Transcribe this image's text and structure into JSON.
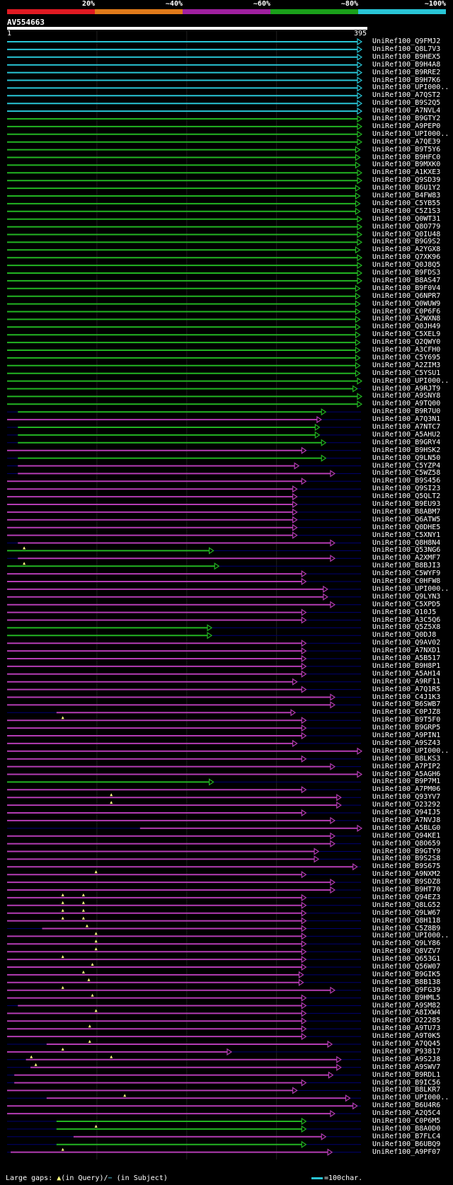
{
  "scale": {
    "labels": [
      "20%",
      "~40%",
      "~60%",
      "~80%",
      "~100%"
    ],
    "colors": [
      "#e01a22",
      "#e07a1a",
      "#a020a0",
      "#1aa01a",
      "#29c5d6"
    ]
  },
  "query": {
    "name": "AV554663",
    "start": "1",
    "end": "395"
  },
  "legend": {
    "gaps_label": "Large gaps:",
    "query_gap": "(in Query)",
    "subject_gap": "(in Subject)",
    "scale_note": "=100char."
  },
  "colors": {
    "cyan": "#29c5d6",
    "green": "#22b422",
    "magenta": "#b43cb4",
    "row_background": "#000070",
    "gap_marker": "#ffff80",
    "guide": "#1e1e1e"
  },
  "hits": [
    {
      "name": "UniRef100_Q9FMJ2",
      "c": "cyan",
      "s": 1,
      "e": 395
    },
    {
      "name": "UniRef100_Q8L7V3",
      "c": "cyan",
      "s": 1,
      "e": 395
    },
    {
      "name": "UniRef100_B9HEX5",
      "c": "cyan",
      "s": 1,
      "e": 395
    },
    {
      "name": "UniRef100_B9H4A8",
      "c": "cyan",
      "s": 1,
      "e": 395
    },
    {
      "name": "UniRef100_B9RRE2",
      "c": "cyan",
      "s": 1,
      "e": 395
    },
    {
      "name": "UniRef100_B9H7K6",
      "c": "cyan",
      "s": 1,
      "e": 395
    },
    {
      "name": "UniRef100_UPI000..",
      "c": "cyan",
      "s": 1,
      "e": 395
    },
    {
      "name": "UniRef100_A7QST2",
      "c": "cyan",
      "s": 1,
      "e": 395
    },
    {
      "name": "UniRef100_B9S2Q5",
      "c": "cyan",
      "s": 1,
      "e": 395
    },
    {
      "name": "UniRef100_A7NVL4",
      "c": "cyan",
      "s": 1,
      "e": 395
    },
    {
      "name": "UniRef100_B9GTY2",
      "c": "green",
      "s": 1,
      "e": 395
    },
    {
      "name": "UniRef100_A9PEP0",
      "c": "green",
      "s": 1,
      "e": 395
    },
    {
      "name": "UniRef100_UPI000..",
      "c": "green",
      "s": 1,
      "e": 395
    },
    {
      "name": "UniRef100_A7QE39",
      "c": "green",
      "s": 1,
      "e": 395
    },
    {
      "name": "UniRef100_B9T5Y6",
      "c": "green",
      "s": 1,
      "e": 393
    },
    {
      "name": "UniRef100_B9HFC0",
      "c": "green",
      "s": 1,
      "e": 393
    },
    {
      "name": "UniRef100_B9MXK0",
      "c": "green",
      "s": 1,
      "e": 393
    },
    {
      "name": "UniRef100_A1KXE3",
      "c": "green",
      "s": 1,
      "e": 395
    },
    {
      "name": "UniRef100_Q9SD39",
      "c": "green",
      "s": 1,
      "e": 395
    },
    {
      "name": "UniRef100_B6U1Y2",
      "c": "green",
      "s": 1,
      "e": 393
    },
    {
      "name": "UniRef100_B4FW83",
      "c": "green",
      "s": 1,
      "e": 393
    },
    {
      "name": "UniRef100_C5YB55",
      "c": "green",
      "s": 1,
      "e": 393
    },
    {
      "name": "UniRef100_C5Z1S3",
      "c": "green",
      "s": 1,
      "e": 393
    },
    {
      "name": "UniRef100_Q0WT31",
      "c": "green",
      "s": 1,
      "e": 395
    },
    {
      "name": "UniRef100_Q8O779",
      "c": "green",
      "s": 1,
      "e": 395
    },
    {
      "name": "UniRef100_Q0IU48",
      "c": "green",
      "s": 1,
      "e": 395
    },
    {
      "name": "UniRef100_B9G9S2",
      "c": "green",
      "s": 1,
      "e": 395
    },
    {
      "name": "UniRef100_A2YGX8",
      "c": "green",
      "s": 1,
      "e": 393
    },
    {
      "name": "UniRef100_Q7XK96",
      "c": "green",
      "s": 1,
      "e": 395
    },
    {
      "name": "UniRef100_Q0J8Q5",
      "c": "green",
      "s": 1,
      "e": 395
    },
    {
      "name": "UniRef100_B9FDS3",
      "c": "green",
      "s": 1,
      "e": 395
    },
    {
      "name": "UniRef100_B8AS47",
      "c": "green",
      "s": 1,
      "e": 395
    },
    {
      "name": "UniRef100_B9F0V4",
      "c": "green",
      "s": 1,
      "e": 393
    },
    {
      "name": "UniRef100_Q6NPR7",
      "c": "green",
      "s": 1,
      "e": 393
    },
    {
      "name": "UniRef100_Q0WUW9",
      "c": "green",
      "s": 1,
      "e": 393
    },
    {
      "name": "UniRef100_C0P6F6",
      "c": "green",
      "s": 1,
      "e": 393
    },
    {
      "name": "UniRef100_A2WXN8",
      "c": "green",
      "s": 1,
      "e": 393
    },
    {
      "name": "UniRef100_Q0JH49",
      "c": "green",
      "s": 1,
      "e": 393
    },
    {
      "name": "UniRef100_C5XEL9",
      "c": "green",
      "s": 1,
      "e": 393
    },
    {
      "name": "UniRef100_Q2QWY0",
      "c": "green",
      "s": 1,
      "e": 393
    },
    {
      "name": "UniRef100_A3CFH0",
      "c": "green",
      "s": 1,
      "e": 393
    },
    {
      "name": "UniRef100_C5Y695",
      "c": "green",
      "s": 1,
      "e": 393
    },
    {
      "name": "UniRef100_A2ZIM3",
      "c": "green",
      "s": 1,
      "e": 393
    },
    {
      "name": "UniRef100_C5YSU1",
      "c": "green",
      "s": 1,
      "e": 393
    },
    {
      "name": "UniRef100_UPI000..",
      "c": "green",
      "s": 1,
      "e": 395
    },
    {
      "name": "UniRef100_A9RJT9",
      "c": "green",
      "s": 1,
      "e": 390
    },
    {
      "name": "UniRef100_A9SNY8",
      "c": "green",
      "s": 1,
      "e": 395
    },
    {
      "name": "UniRef100_A9TQ00",
      "c": "green",
      "s": 1,
      "e": 395
    },
    {
      "name": "UniRef100_B9R7U0",
      "c": "green",
      "s": 13,
      "e": 355
    },
    {
      "name": "UniRef100_A7Q3N1",
      "c": "magenta",
      "s": 1,
      "e": 350
    },
    {
      "name": "UniRef100_A7NTC7",
      "c": "green",
      "s": 13,
      "e": 348
    },
    {
      "name": "UniRef100_A5AHU2",
      "c": "green",
      "s": 13,
      "e": 348
    },
    {
      "name": "UniRef100_B9GRY4",
      "c": "green",
      "s": 13,
      "e": 355
    },
    {
      "name": "UniRef100_B9HSK2",
      "c": "magenta",
      "s": 1,
      "e": 333
    },
    {
      "name": "UniRef100_Q9LN50",
      "c": "green",
      "s": 13,
      "e": 355
    },
    {
      "name": "UniRef100_C5YZP4",
      "c": "magenta",
      "s": 13,
      "e": 325
    },
    {
      "name": "UniRef100_C5WZ58",
      "c": "magenta",
      "s": 13,
      "e": 365
    },
    {
      "name": "UniRef100_B9S456",
      "c": "magenta",
      "s": 1,
      "e": 333
    },
    {
      "name": "UniRef100_Q9SI23",
      "c": "magenta",
      "s": 1,
      "e": 323
    },
    {
      "name": "UniRef100_Q5QLT2",
      "c": "magenta",
      "s": 1,
      "e": 323
    },
    {
      "name": "UniRef100_B9EU93",
      "c": "magenta",
      "s": 1,
      "e": 323
    },
    {
      "name": "UniRef100_B8ABM7",
      "c": "magenta",
      "s": 1,
      "e": 323
    },
    {
      "name": "UniRef100_Q6ATW5",
      "c": "magenta",
      "s": 1,
      "e": 323
    },
    {
      "name": "UniRef100_Q0DHE5",
      "c": "magenta",
      "s": 1,
      "e": 323
    },
    {
      "name": "UniRef100_C5XNY1",
      "c": "magenta",
      "s": 1,
      "e": 323
    },
    {
      "name": "UniRef100_Q8H8N4",
      "c": "magenta",
      "s": 13,
      "e": 365
    },
    {
      "name": "UniRef100_Q53NG6",
      "c": "green",
      "s": 1,
      "e": 230,
      "g": [
        {
          "p": 20,
          "t": "q"
        }
      ]
    },
    {
      "name": "UniRef100_A2XMF7",
      "c": "magenta",
      "s": 13,
      "e": 365
    },
    {
      "name": "UniRef100_B8BJI3",
      "c": "green",
      "s": 1,
      "e": 236,
      "g": [
        {
          "p": 20,
          "t": "q"
        }
      ]
    },
    {
      "name": "UniRef100_C5WYF9",
      "c": "magenta",
      "s": 1,
      "e": 333
    },
    {
      "name": "UniRef100_C0HFW8",
      "c": "magenta",
      "s": 1,
      "e": 333
    },
    {
      "name": "UniRef100_UPI000..",
      "c": "magenta",
      "s": 1,
      "e": 357
    },
    {
      "name": "UniRef100_Q9LYN3",
      "c": "magenta",
      "s": 1,
      "e": 357
    },
    {
      "name": "UniRef100_C5XPD5",
      "c": "magenta",
      "s": 1,
      "e": 365
    },
    {
      "name": "UniRef100_Q10J5",
      "c": "magenta",
      "s": 1,
      "e": 333
    },
    {
      "name": "UniRef100_A3C5Q6",
      "c": "magenta",
      "s": 1,
      "e": 333
    },
    {
      "name": "UniRef100_Q5Z5X8",
      "c": "green",
      "s": 1,
      "e": 228
    },
    {
      "name": "UniRef100_Q0DJ8",
      "c": "green",
      "s": 1,
      "e": 228
    },
    {
      "name": "UniRef100_Q9AV02",
      "c": "magenta",
      "s": 1,
      "e": 333
    },
    {
      "name": "UniRef100_A7NXD1",
      "c": "magenta",
      "s": 1,
      "e": 333
    },
    {
      "name": "UniRef100_A5B517",
      "c": "magenta",
      "s": 1,
      "e": 333
    },
    {
      "name": "UniRef100_B9H8P1",
      "c": "magenta",
      "s": 1,
      "e": 333
    },
    {
      "name": "UniRef100_A5AH14",
      "c": "magenta",
      "s": 1,
      "e": 333
    },
    {
      "name": "UniRef100_A9RF11",
      "c": "magenta",
      "s": 1,
      "e": 323
    },
    {
      "name": "UniRef100_A7Q1R5",
      "c": "magenta",
      "s": 1,
      "e": 333
    },
    {
      "name": "UniRef100_C4J1K3",
      "c": "magenta",
      "s": 1,
      "e": 365
    },
    {
      "name": "UniRef100_B6SWB7",
      "c": "magenta",
      "s": 1,
      "e": 365
    },
    {
      "name": "UniRef100_C0PJZ8",
      "c": "magenta",
      "s": 56,
      "e": 321
    },
    {
      "name": "UniRef100_B9T5F0",
      "c": "magenta",
      "s": 1,
      "e": 333,
      "g": [
        {
          "p": 63,
          "t": "q"
        }
      ]
    },
    {
      "name": "UniRef100_B9GRP5",
      "c": "magenta",
      "s": 1,
      "e": 333
    },
    {
      "name": "UniRef100_A9PIN1",
      "c": "magenta",
      "s": 1,
      "e": 333
    },
    {
      "name": "UniRef100_A9SZ43",
      "c": "magenta",
      "s": 1,
      "e": 323
    },
    {
      "name": "UniRef100_UPI000..",
      "c": "magenta",
      "s": 1,
      "e": 395
    },
    {
      "name": "UniRef100_B8LKS3",
      "c": "magenta",
      "s": 1,
      "e": 333
    },
    {
      "name": "UniRef100_A7PIP2",
      "c": "magenta",
      "s": 1,
      "e": 365
    },
    {
      "name": "UniRef100_A5AGH6",
      "c": "magenta",
      "s": 1,
      "e": 395
    },
    {
      "name": "UniRef100_B9P7M1",
      "c": "green",
      "s": 1,
      "e": 230
    },
    {
      "name": "UniRef100_A7PM06",
      "c": "magenta",
      "s": 1,
      "e": 333
    },
    {
      "name": "UniRef100_Q93YV7",
      "c": "magenta",
      "s": 1,
      "e": 372,
      "g": [
        {
          "p": 117,
          "t": "q"
        }
      ]
    },
    {
      "name": "UniRef100_O23292",
      "c": "magenta",
      "s": 1,
      "e": 372,
      "g": [
        {
          "p": 117,
          "t": "q"
        }
      ]
    },
    {
      "name": "UniRef100_Q94IJ5",
      "c": "magenta",
      "s": 1,
      "e": 333
    },
    {
      "name": "UniRef100_A7NVJ8",
      "c": "magenta",
      "s": 1,
      "e": 365
    },
    {
      "name": "UniRef100_A5BLG0",
      "c": "magenta",
      "s": 149,
      "e": 395
    },
    {
      "name": "UniRef100_Q94KE1",
      "c": "magenta",
      "s": 1,
      "e": 365
    },
    {
      "name": "UniRef100_Q8O659",
      "c": "magenta",
      "s": 1,
      "e": 365
    },
    {
      "name": "UniRef100_B9GTY9",
      "c": "magenta",
      "s": 1,
      "e": 347
    },
    {
      "name": "UniRef100_B9S2S8",
      "c": "magenta",
      "s": 1,
      "e": 347
    },
    {
      "name": "UniRef100_B9S675",
      "c": "magenta",
      "s": 1,
      "e": 390
    },
    {
      "name": "UniRef100_A9NXM2",
      "c": "magenta",
      "s": 1,
      "e": 333,
      "g": [
        {
          "p": 100,
          "t": "q"
        }
      ]
    },
    {
      "name": "UniRef100_B9SDZ8",
      "c": "magenta",
      "s": 1,
      "e": 365
    },
    {
      "name": "UniRef100_B9HT70",
      "c": "magenta",
      "s": 1,
      "e": 365
    },
    {
      "name": "UniRef100_Q94EZ3",
      "c": "magenta",
      "s": 1,
      "e": 333,
      "g": [
        {
          "p": 63,
          "t": "q"
        },
        {
          "p": 86,
          "t": "q"
        }
      ]
    },
    {
      "name": "UniRef100_Q8LG52",
      "c": "magenta",
      "s": 1,
      "e": 333,
      "g": [
        {
          "p": 63,
          "t": "q"
        },
        {
          "p": 86,
          "t": "q"
        }
      ]
    },
    {
      "name": "UniRef100_Q9LW67",
      "c": "magenta",
      "s": 1,
      "e": 333,
      "g": [
        {
          "p": 63,
          "t": "q"
        },
        {
          "p": 86,
          "t": "q"
        }
      ]
    },
    {
      "name": "UniRef100_Q8H118",
      "c": "magenta",
      "s": 1,
      "e": 333,
      "g": [
        {
          "p": 63,
          "t": "q"
        },
        {
          "p": 86,
          "t": "q"
        }
      ]
    },
    {
      "name": "UniRef100_C5Z8B9",
      "c": "magenta",
      "s": 40,
      "e": 333,
      "g": [
        {
          "p": 90,
          "t": "q"
        }
      ]
    },
    {
      "name": "UniRef100_UPI000..",
      "c": "magenta",
      "s": 1,
      "e": 333,
      "g": [
        {
          "p": 100,
          "t": "q"
        }
      ]
    },
    {
      "name": "UniRef100_Q9LY86",
      "c": "magenta",
      "s": 1,
      "e": 333,
      "g": [
        {
          "p": 100,
          "t": "q"
        }
      ]
    },
    {
      "name": "UniRef100_Q8VZV7",
      "c": "magenta",
      "s": 1,
      "e": 333,
      "g": [
        {
          "p": 100,
          "t": "q"
        }
      ]
    },
    {
      "name": "UniRef100_Q653G1",
      "c": "magenta",
      "s": 1,
      "e": 333,
      "g": [
        {
          "p": 63,
          "t": "q"
        }
      ]
    },
    {
      "name": "UniRef100_Q56W07",
      "c": "magenta",
      "s": 1,
      "e": 333,
      "g": [
        {
          "p": 96,
          "t": "q"
        }
      ]
    },
    {
      "name": "UniRef100_B9GIK5",
      "c": "magenta",
      "s": 1,
      "e": 330,
      "g": [
        {
          "p": 86,
          "t": "q"
        }
      ]
    },
    {
      "name": "UniRef100_B8B138",
      "c": "magenta",
      "s": 1,
      "e": 330,
      "g": [
        {
          "p": 92,
          "t": "q"
        }
      ]
    },
    {
      "name": "UniRef100_Q9FG39",
      "c": "magenta",
      "s": 1,
      "e": 365,
      "g": [
        {
          "p": 63,
          "t": "q"
        }
      ]
    },
    {
      "name": "UniRef100_B9HML5",
      "c": "magenta",
      "s": 1,
      "e": 333,
      "g": [
        {
          "p": 96,
          "t": "q"
        }
      ]
    },
    {
      "name": "UniRef100_A9SM82",
      "c": "magenta",
      "s": 13,
      "e": 333
    },
    {
      "name": "UniRef100_A8IXW4",
      "c": "magenta",
      "s": 1,
      "e": 333,
      "g": [
        {
          "p": 100,
          "t": "q"
        }
      ]
    },
    {
      "name": "UniRef100_O22285",
      "c": "magenta",
      "s": 1,
      "e": 333
    },
    {
      "name": "UniRef100_A9TU73",
      "c": "magenta",
      "s": 1,
      "e": 333,
      "g": [
        {
          "p": 93,
          "t": "q"
        }
      ]
    },
    {
      "name": "UniRef100_A9T0K5",
      "c": "magenta",
      "s": 1,
      "e": 333
    },
    {
      "name": "UniRef100_A7QQ45",
      "c": "magenta",
      "s": 45,
      "e": 362,
      "g": [
        {
          "p": 93,
          "t": "q"
        }
      ]
    },
    {
      "name": "UniRef100_P93817",
      "c": "magenta",
      "s": 1,
      "e": 250,
      "g": [
        {
          "p": 63,
          "t": "q"
        }
      ]
    },
    {
      "name": "UniRef100_A9S2J8",
      "c": "magenta",
      "s": 22,
      "e": 372,
      "g": [
        {
          "p": 28,
          "t": "q"
        },
        {
          "p": 117,
          "t": "q"
        }
      ]
    },
    {
      "name": "UniRef100_A9SWV7",
      "c": "magenta",
      "s": 27,
      "e": 372,
      "g": [
        {
          "p": 33,
          "t": "q"
        }
      ]
    },
    {
      "name": "UniRef100_B9RDL1",
      "c": "magenta",
      "s": 9,
      "e": 363
    },
    {
      "name": "UniRef100_B9IC56",
      "c": "magenta",
      "s": 9,
      "e": 333
    },
    {
      "name": "UniRef100_B8LKR7",
      "c": "magenta",
      "s": 1,
      "e": 323
    },
    {
      "name": "UniRef100_UPI000..",
      "c": "magenta",
      "s": 45,
      "e": 382,
      "g": [
        {
          "p": 132,
          "t": "q"
        }
      ]
    },
    {
      "name": "UniRef100_B6U4R6",
      "c": "magenta",
      "s": 1,
      "e": 390
    },
    {
      "name": "UniRef100_A2Q5C4",
      "c": "magenta",
      "s": 1,
      "e": 365
    },
    {
      "name": "UniRef100_C0P6M5",
      "c": "green",
      "s": 56,
      "e": 333
    },
    {
      "name": "UniRef100_B8A0D0",
      "c": "green",
      "s": 56,
      "e": 333,
      "g": [
        {
          "p": 100,
          "t": "q"
        }
      ]
    },
    {
      "name": "UniRef100_B7FLC4",
      "c": "magenta",
      "s": 75,
      "e": 355
    },
    {
      "name": "UniRef100_B6UBQ9",
      "c": "green",
      "s": 56,
      "e": 333
    },
    {
      "name": "UniRef100_A9PF07",
      "c": "magenta",
      "s": 5,
      "e": 362,
      "g": [
        {
          "p": 63,
          "t": "q"
        }
      ]
    }
  ]
}
